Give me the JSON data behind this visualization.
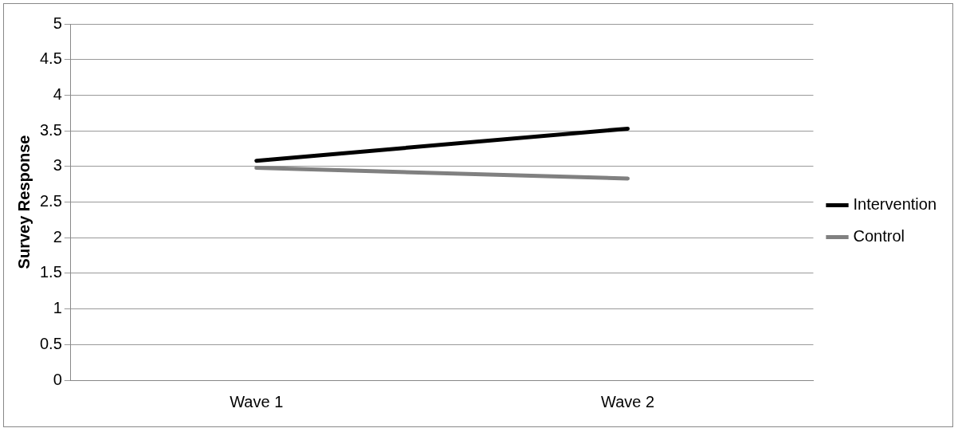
{
  "chart_data": {
    "type": "line",
    "ylabel": "Survey Response",
    "categories": [
      "Wave 1",
      "Wave 2"
    ],
    "series": [
      {
        "name": "Intervention",
        "color": "#000000",
        "values": [
          3.08,
          3.53
        ]
      },
      {
        "name": "Control",
        "color": "#808080",
        "values": [
          2.98,
          2.83
        ]
      }
    ],
    "ylim": [
      0,
      5
    ],
    "yticks": [
      0,
      0.5,
      1,
      1.5,
      2,
      2.5,
      3,
      3.5,
      4,
      4.5,
      5
    ],
    "grid": "y",
    "legend": "right",
    "marker": "none",
    "line_style": "solid"
  }
}
